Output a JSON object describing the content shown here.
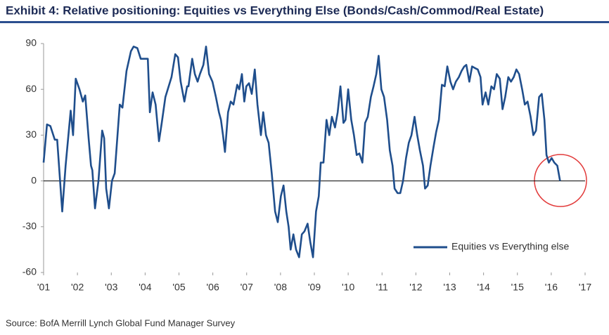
{
  "chart_data": {
    "type": "line",
    "title": "Exhibit 4: Relative positioning: Equities vs Everything Else (Bonds/Cash/Commod/Real Estate)",
    "source": "Source: BofA Merrill Lynch Global Fund Manager Survey",
    "x": [
      2001.0,
      2001.1,
      2001.2,
      2001.33,
      2001.4,
      2001.55,
      2001.65,
      2001.8,
      2001.87,
      2001.95,
      2002.06,
      2002.16,
      2002.23,
      2002.33,
      2002.4,
      2002.44,
      2002.52,
      2002.62,
      2002.73,
      2002.79,
      2002.85,
      2002.93,
      2003.02,
      2003.1,
      2003.25,
      2003.33,
      2003.45,
      2003.58,
      2003.66,
      2003.77,
      2003.87,
      2003.99,
      2004.08,
      2004.14,
      2004.22,
      2004.31,
      2004.41,
      2004.49,
      2004.6,
      2004.78,
      2004.89,
      2004.97,
      2005.05,
      2005.16,
      2005.24,
      2005.28,
      2005.39,
      2005.47,
      2005.55,
      2005.62,
      2005.72,
      2005.8,
      2005.89,
      2005.99,
      2006.09,
      2006.18,
      2006.24,
      2006.3,
      2006.36,
      2006.45,
      2006.53,
      2006.61,
      2006.72,
      2006.78,
      2006.86,
      2006.93,
      2006.99,
      2007.07,
      2007.15,
      2007.24,
      2007.32,
      2007.42,
      2007.49,
      2007.57,
      2007.65,
      2007.74,
      2007.84,
      2007.92,
      2008.01,
      2008.09,
      2008.17,
      2008.24,
      2008.3,
      2008.38,
      2008.46,
      2008.55,
      2008.63,
      2008.71,
      2008.8,
      2008.88,
      2008.96,
      2009.05,
      2009.13,
      2009.19,
      2009.27,
      2009.36,
      2009.44,
      2009.52,
      2009.61,
      2009.69,
      2009.77,
      2009.86,
      2009.92,
      2010.0,
      2010.09,
      2010.17,
      2010.25,
      2010.33,
      2010.42,
      2010.5,
      2010.58,
      2010.67,
      2010.75,
      2010.83,
      2010.9,
      2010.98,
      2011.06,
      2011.15,
      2011.23,
      2011.31,
      2011.37,
      2011.46,
      2011.54,
      2011.62,
      2011.71,
      2011.79,
      2011.87,
      2011.96,
      2012.04,
      2012.12,
      2012.21,
      2012.27,
      2012.35,
      2012.43,
      2012.52,
      2012.6,
      2012.68,
      2012.77,
      2012.85,
      2012.93,
      2013.02,
      2013.1,
      2013.18,
      2013.27,
      2013.35,
      2013.43,
      2013.49,
      2013.58,
      2013.66,
      2013.74,
      2013.83,
      2013.91,
      2013.97,
      2014.06,
      2014.14,
      2014.23,
      2014.31,
      2014.39,
      2014.48,
      2014.56,
      2014.64,
      2014.73,
      2014.81,
      2014.89,
      2014.97,
      2015.05,
      2015.14,
      2015.22,
      2015.3,
      2015.39,
      2015.47,
      2015.55,
      2015.64,
      2015.72,
      2015.8,
      2015.86,
      2015.93,
      2016.01,
      2016.09,
      2016.18,
      2016.26
    ],
    "series": [
      {
        "name": "Equities vs Everything else",
        "color": "#1f4e8c",
        "values": [
          12,
          37,
          36,
          27,
          27,
          -20,
          10,
          46,
          30,
          67,
          60,
          52,
          56,
          28,
          10,
          7,
          -18,
          0,
          33,
          28,
          -5,
          -18,
          0,
          5,
          50,
          48,
          72,
          85,
          88,
          87,
          80,
          80,
          80,
          45,
          58,
          50,
          26,
          38,
          55,
          68,
          83,
          81,
          65,
          52,
          62,
          62,
          80,
          70,
          65,
          70,
          76,
          88,
          70,
          65,
          55,
          45,
          40,
          30,
          19,
          45,
          52,
          50,
          63,
          60,
          70,
          52,
          62,
          64,
          57,
          73,
          50,
          30,
          45,
          30,
          25,
          5,
          -20,
          -27,
          -10,
          -3,
          -20,
          -30,
          -45,
          -35,
          -45,
          -50,
          -35,
          -33,
          -28,
          -40,
          -50,
          -20,
          -10,
          12,
          12,
          40,
          30,
          42,
          35,
          45,
          62,
          38,
          40,
          60,
          40,
          30,
          17,
          18,
          12,
          38,
          42,
          55,
          62,
          70,
          82,
          60,
          55,
          40,
          20,
          10,
          -5,
          -8,
          -8,
          0,
          15,
          25,
          30,
          42,
          30,
          20,
          10,
          -5,
          -3,
          10,
          22,
          32,
          40,
          63,
          62,
          75,
          65,
          60,
          65,
          68,
          72,
          75,
          76,
          65,
          75,
          74,
          73,
          68,
          50,
          58,
          50,
          62,
          60,
          70,
          67,
          47,
          55,
          68,
          65,
          68,
          73,
          70,
          60,
          50,
          52,
          42,
          30,
          33,
          55,
          57,
          40,
          17,
          12,
          15,
          12,
          10,
          0
        ]
      }
    ],
    "xlim": [
      2001,
      2017
    ],
    "xticks": [
      {
        "value": 2001,
        "label": "'01"
      },
      {
        "value": 2002,
        "label": "'02"
      },
      {
        "value": 2003,
        "label": "'03"
      },
      {
        "value": 2004,
        "label": "'04"
      },
      {
        "value": 2005,
        "label": "'05"
      },
      {
        "value": 2006,
        "label": "'06"
      },
      {
        "value": 2007,
        "label": "'07"
      },
      {
        "value": 2008,
        "label": "'08"
      },
      {
        "value": 2009,
        "label": "'09"
      },
      {
        "value": 2010,
        "label": "'10"
      },
      {
        "value": 2011,
        "label": "'11"
      },
      {
        "value": 2012,
        "label": "'12"
      },
      {
        "value": 2013,
        "label": "'13"
      },
      {
        "value": 2014,
        "label": "'14"
      },
      {
        "value": 2015,
        "label": "'15"
      },
      {
        "value": 2016,
        "label": "'16"
      },
      {
        "value": 2017,
        "label": "'17"
      }
    ],
    "ylim": [
      -60,
      90
    ],
    "yticks": [
      -60,
      -30,
      0,
      30,
      60,
      90
    ],
    "legend": "lower right"
  }
}
